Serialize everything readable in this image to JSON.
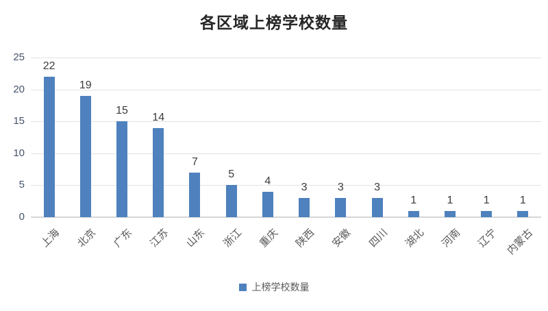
{
  "chart_data": {
    "type": "bar",
    "title": "各区域上榜学校数量",
    "categories": [
      "上海",
      "北京",
      "广东",
      "江苏",
      "山东",
      "浙江",
      "重庆",
      "陕西",
      "安徽",
      "四川",
      "湖北",
      "河南",
      "辽宁",
      "内蒙古"
    ],
    "values": [
      22,
      19,
      15,
      14,
      7,
      5,
      4,
      3,
      3,
      3,
      1,
      1,
      1,
      1
    ],
    "series_name": "上榜学校数量",
    "legend_position": "bottom",
    "ylabel": "",
    "xlabel": "",
    "ylim": [
      0,
      25
    ],
    "yticks": [
      0,
      5,
      10,
      15,
      20,
      25
    ],
    "grid": true,
    "data_labels": true,
    "colors": {
      "bar": "#4e81bd",
      "grid": "#e2e2e2",
      "axis_line": "#d6d6d6",
      "ytick_text": "#44546a",
      "data_label_text": "#3b3b3b",
      "category_text": "#595959",
      "title_text": "#262626",
      "legend_text": "#595959",
      "background": "#ffffff"
    }
  }
}
